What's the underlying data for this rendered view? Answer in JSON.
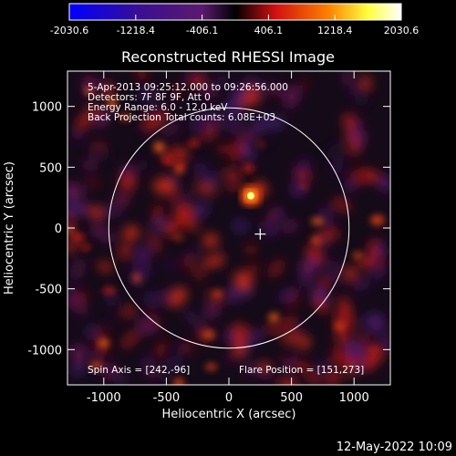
{
  "chart_data": {
    "type": "heatmap",
    "title": "Reconstructed RHESSI Image",
    "xlabel": "Heliocentric X (arcsec)",
    "ylabel": "Heliocentric Y (arcsec)",
    "xlim": [
      -1290,
      1290
    ],
    "ylim": [
      -1290,
      1290
    ],
    "x_ticks": [
      -1000,
      -500,
      0,
      500,
      1000
    ],
    "y_ticks": [
      -1000,
      -500,
      0,
      500,
      1000
    ],
    "colorbar": {
      "range": [
        -2030.6,
        2030.6
      ],
      "ticks": [
        "-2030.6",
        "-1218.4",
        "-406.1",
        "406.1",
        "1218.4",
        "2030.6"
      ],
      "colors": [
        "#0000ff",
        "#3b0f8f",
        "#5b1a6e",
        "#000000",
        "#d01010",
        "#ff8000",
        "#ffff40",
        "#ffffff"
      ]
    },
    "info_lines": [
      "5-Apr-2013 09:25:12.000 to 09:26:56.000",
      "Detectors: 7F 8F 9F, Att 0",
      "Energy Range: 6.0 - 12.0 keV",
      "Back Projection   Total counts: 6.08E+03"
    ],
    "spin_axis": "Spin Axis = [242,-96]",
    "flare_position": "Flare Position = [151,273]",
    "bright_source": {
      "x": 175,
      "y": 265
    },
    "center_marker": {
      "x": 250,
      "y": -50
    },
    "solar_limb_radius": 960,
    "timestamp": "12-May-2022 10:09"
  }
}
